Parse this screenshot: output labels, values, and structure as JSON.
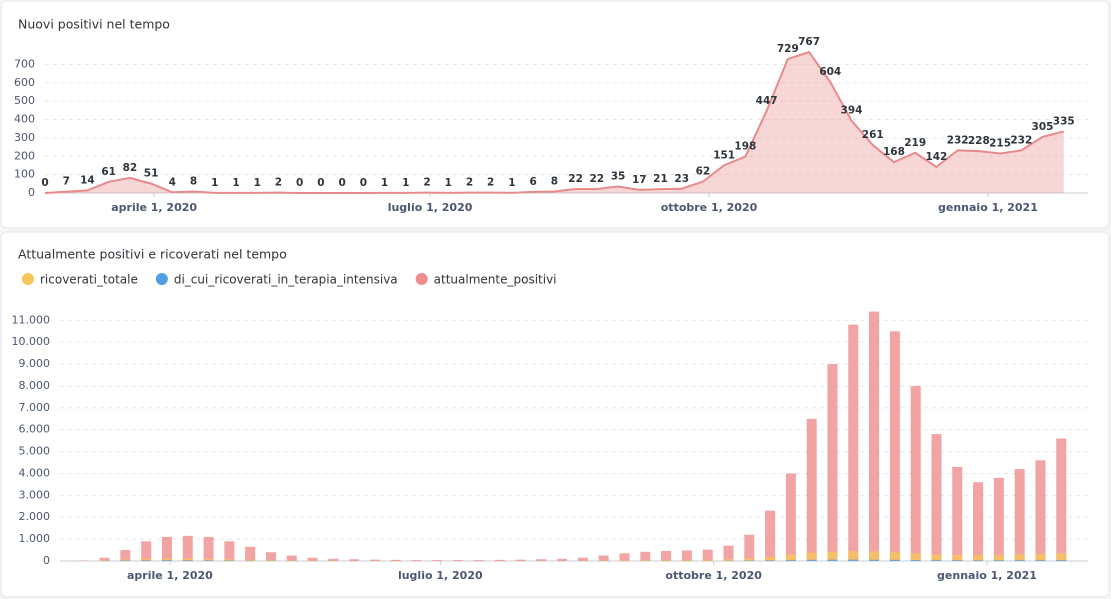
{
  "chart_data": [
    {
      "type": "area",
      "title": "Nuovi positivi nel tempo",
      "color": "#e88a8a",
      "x": [
        "2020-02-25",
        "2020-03-03",
        "2020-03-10",
        "2020-03-17",
        "2020-03-24",
        "2020-03-31",
        "2020-04-07",
        "2020-04-14",
        "2020-04-21",
        "2020-04-28",
        "2020-05-05",
        "2020-05-12",
        "2020-05-19",
        "2020-05-26",
        "2020-06-02",
        "2020-06-09",
        "2020-06-16",
        "2020-06-23",
        "2020-06-30",
        "2020-07-07",
        "2020-07-14",
        "2020-07-21",
        "2020-07-28",
        "2020-08-04",
        "2020-08-11",
        "2020-08-18",
        "2020-08-25",
        "2020-09-01",
        "2020-09-08",
        "2020-09-15",
        "2020-09-22",
        "2020-09-29",
        "2020-10-06",
        "2020-10-13",
        "2020-10-20",
        "2020-10-27",
        "2020-11-03",
        "2020-11-10",
        "2020-11-17",
        "2020-11-24",
        "2020-12-01",
        "2020-12-08",
        "2020-12-15",
        "2020-12-22",
        "2020-12-29",
        "2021-01-05",
        "2021-01-12",
        "2021-01-19",
        "2021-01-26"
      ],
      "values": [
        0,
        7,
        14,
        61,
        82,
        51,
        4,
        8,
        1,
        1,
        1,
        2,
        0,
        0,
        0,
        0,
        1,
        1,
        2,
        1,
        2,
        2,
        1,
        6,
        8,
        22,
        22,
        35,
        17,
        21,
        23,
        62,
        151,
        198,
        447,
        729,
        767,
        604,
        394,
        261,
        168,
        219,
        142,
        232,
        228,
        215,
        232,
        305,
        335
      ],
      "xlim": [
        "2020-02-25",
        "2021-02-03"
      ],
      "xticks": [
        {
          "value": "2020-04-01",
          "label": "aprile 1, 2020"
        },
        {
          "value": "2020-07-01",
          "label": "luglio 1, 2020"
        },
        {
          "value": "2020-10-01",
          "label": "ottobre 1, 2020"
        },
        {
          "value": "2021-01-01",
          "label": "gennaio 1, 2021"
        }
      ],
      "ylim": [
        0,
        800
      ],
      "yticks": [
        0,
        100,
        200,
        300,
        400,
        500,
        600,
        700
      ],
      "grid": true
    },
    {
      "type": "bar",
      "title": "Attualmente positivi e ricoverati nel tempo",
      "legend": "top-left",
      "grid": true,
      "x": [
        "2020-02-25",
        "2020-03-03",
        "2020-03-10",
        "2020-03-17",
        "2020-03-24",
        "2020-03-31",
        "2020-04-07",
        "2020-04-14",
        "2020-04-21",
        "2020-04-28",
        "2020-05-05",
        "2020-05-12",
        "2020-05-19",
        "2020-05-26",
        "2020-06-02",
        "2020-06-09",
        "2020-06-16",
        "2020-06-23",
        "2020-06-30",
        "2020-07-07",
        "2020-07-14",
        "2020-07-21",
        "2020-07-28",
        "2020-08-04",
        "2020-08-11",
        "2020-08-18",
        "2020-08-25",
        "2020-09-01",
        "2020-09-08",
        "2020-09-15",
        "2020-09-22",
        "2020-09-29",
        "2020-10-06",
        "2020-10-13",
        "2020-10-20",
        "2020-10-27",
        "2020-11-03",
        "2020-11-10",
        "2020-11-17",
        "2020-11-24",
        "2020-12-01",
        "2020-12-08",
        "2020-12-15",
        "2020-12-22",
        "2020-12-29",
        "2021-01-05",
        "2021-01-12",
        "2021-01-19",
        "2021-01-26"
      ],
      "series": [
        {
          "name": "ricoverati_totale",
          "color": "#f5c65a",
          "values": [
            0,
            5,
            30,
            70,
            110,
            130,
            120,
            100,
            80,
            60,
            40,
            30,
            20,
            15,
            10,
            10,
            8,
            6,
            5,
            5,
            5,
            5,
            6,
            8,
            10,
            15,
            20,
            30,
            40,
            50,
            55,
            60,
            80,
            120,
            200,
            300,
            380,
            430,
            450,
            440,
            400,
            350,
            300,
            280,
            270,
            280,
            300,
            320,
            350
          ]
        },
        {
          "name": "di_cui_ricoverati_in_terapia_intensiva",
          "color": "#509ee3",
          "values": [
            0,
            1,
            8,
            20,
            30,
            35,
            30,
            25,
            18,
            12,
            8,
            5,
            3,
            2,
            2,
            1,
            1,
            1,
            1,
            1,
            1,
            1,
            1,
            1,
            2,
            2,
            3,
            4,
            5,
            6,
            6,
            7,
            10,
            15,
            25,
            40,
            55,
            60,
            62,
            60,
            55,
            45,
            40,
            35,
            33,
            35,
            38,
            40,
            42
          ]
        },
        {
          "name": "attualmente_positivi",
          "color": "#ef8c8c",
          "values": [
            0,
            20,
            150,
            500,
            900,
            1100,
            1150,
            1100,
            900,
            650,
            400,
            250,
            150,
            100,
            80,
            60,
            50,
            40,
            40,
            40,
            40,
            50,
            60,
            80,
            100,
            150,
            250,
            350,
            420,
            460,
            480,
            520,
            700,
            1200,
            2300,
            4000,
            6500,
            9000,
            10800,
            11400,
            10500,
            8000,
            5800,
            4300,
            3600,
            3800,
            4200,
            4600,
            5600
          ]
        }
      ],
      "xlim": [
        "2020-02-24",
        "2021-02-04"
      ],
      "xticks": [
        {
          "value": "2020-04-01",
          "label": "aprile 1, 2020"
        },
        {
          "value": "2020-07-01",
          "label": "luglio 1, 2020"
        },
        {
          "value": "2020-10-01",
          "label": "ottobre 1, 2020"
        },
        {
          "value": "2021-01-01",
          "label": "gennaio 1, 2021"
        }
      ],
      "ylim": [
        0,
        11700
      ],
      "yticks": [
        0,
        {
          "value": 1000,
          "label": "1.000"
        },
        {
          "value": 2000,
          "label": "2.000"
        },
        {
          "value": 3000,
          "label": "3.000"
        },
        {
          "value": 4000,
          "label": "4.000"
        },
        {
          "value": 5000,
          "label": "5.000"
        },
        {
          "value": 6000,
          "label": "6.000"
        },
        {
          "value": 7000,
          "label": "7.000"
        },
        {
          "value": 8000,
          "label": "8.000"
        },
        {
          "value": 9000,
          "label": "9.000"
        },
        {
          "value": 10000,
          "label": "10.000"
        },
        {
          "value": 11000,
          "label": "11.000"
        }
      ]
    }
  ]
}
